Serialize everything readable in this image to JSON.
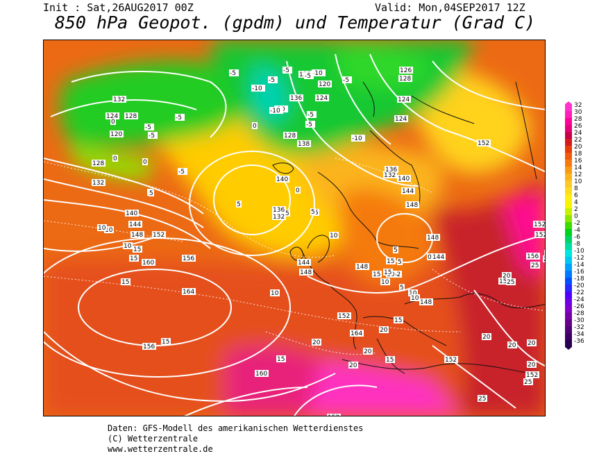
{
  "header": {
    "init": "Init : Sat,26AUG2017 00Z",
    "valid": "Valid: Mon,04SEP2017 12Z",
    "title": "850 hPa Geopot. (gpdm) und Temperatur (Grad C)"
  },
  "footer": {
    "line1": "Daten: GFS-Modell des amerikanischen Wetterdienstes",
    "line2": "(C) Wetterzentrale",
    "line3": "www.wetterzentrale.de"
  },
  "colorbar": {
    "levels": [
      {
        "label": "32",
        "color": "#ff33cc"
      },
      {
        "label": "30",
        "color": "#ff1fb8"
      },
      {
        "label": "28",
        "color": "#ff0099"
      },
      {
        "label": "26",
        "color": "#e6007a"
      },
      {
        "label": "24",
        "color": "#c80046"
      },
      {
        "label": "22",
        "color": "#d41a1a"
      },
      {
        "label": "20",
        "color": "#e63c0a"
      },
      {
        "label": "18",
        "color": "#f05a0a"
      },
      {
        "label": "16",
        "color": "#f57a0f"
      },
      {
        "label": "14",
        "color": "#f99a14"
      },
      {
        "label": "12",
        "color": "#fbb41e"
      },
      {
        "label": "10",
        "color": "#fdc828"
      },
      {
        "label": "8",
        "color": "#ffdc1e"
      },
      {
        "label": "6",
        "color": "#ffee10"
      },
      {
        "label": "4",
        "color": "#f5f500"
      },
      {
        "label": "2",
        "color": "#c8f000"
      },
      {
        "label": "0",
        "color": "#8ce600"
      },
      {
        "label": "-2",
        "color": "#3cdc00"
      },
      {
        "label": "-4",
        "color": "#00d21e"
      },
      {
        "label": "-6",
        "color": "#00d264"
      },
      {
        "label": "-8",
        "color": "#00dca0"
      },
      {
        "label": "-10",
        "color": "#00e6dc"
      },
      {
        "label": "-12",
        "color": "#00c8f0"
      },
      {
        "label": "-14",
        "color": "#00a0ff"
      },
      {
        "label": "-16",
        "color": "#0078ff"
      },
      {
        "label": "-18",
        "color": "#0050ff"
      },
      {
        "label": "-20",
        "color": "#2828ff"
      },
      {
        "label": "-22",
        "color": "#5000ff"
      },
      {
        "label": "-24",
        "color": "#6e00e6"
      },
      {
        "label": "-26",
        "color": "#8200c8"
      },
      {
        "label": "-28",
        "color": "#7800aa"
      },
      {
        "label": "-30",
        "color": "#64008c"
      },
      {
        "label": "-32",
        "color": "#500078"
      },
      {
        "label": "-34",
        "color": "#3c0064"
      },
      {
        "label": "-36",
        "color": "#280050"
      }
    ]
  },
  "map": {
    "geopotential_labels": [
      "132",
      "124",
      "128",
      "120",
      "128",
      "132",
      "138",
      "140",
      "144",
      "148",
      "152",
      "156",
      "160",
      "164",
      "156",
      "160",
      "164",
      "140",
      "136",
      "132",
      "144",
      "148",
      "148",
      "152",
      "148",
      "148",
      "144",
      "152",
      "152",
      "152",
      "152",
      "152",
      "156",
      "152",
      "136",
      "132",
      "140",
      "144",
      "148",
      "126",
      "128",
      "124",
      "124",
      "128",
      "148",
      "152",
      "152",
      "152",
      "136",
      "132",
      "120",
      "124"
    ],
    "temperature_labels": [
      "-10",
      "-5",
      "-10",
      "-5",
      "-5",
      "-10",
      "-10",
      "-5",
      "-5",
      "-10",
      "-5",
      "-5",
      "-5",
      "0",
      "0",
      "0",
      "0",
      "5",
      "5",
      "5",
      "5",
      "5",
      "10",
      "10",
      "10",
      "10",
      "15",
      "15",
      "15",
      "15",
      "15",
      "15",
      "15",
      "15",
      "20",
      "20",
      "20",
      "20",
      "20",
      "20",
      "25",
      "25",
      "25",
      "25",
      "25",
      "-5",
      "0",
      "5",
      "10",
      "10",
      "15",
      "10",
      "15",
      "20",
      "5",
      "0",
      "5",
      "5",
      "10",
      "10",
      "15",
      "20",
      "20",
      "25",
      "-5",
      "-5"
    ]
  }
}
